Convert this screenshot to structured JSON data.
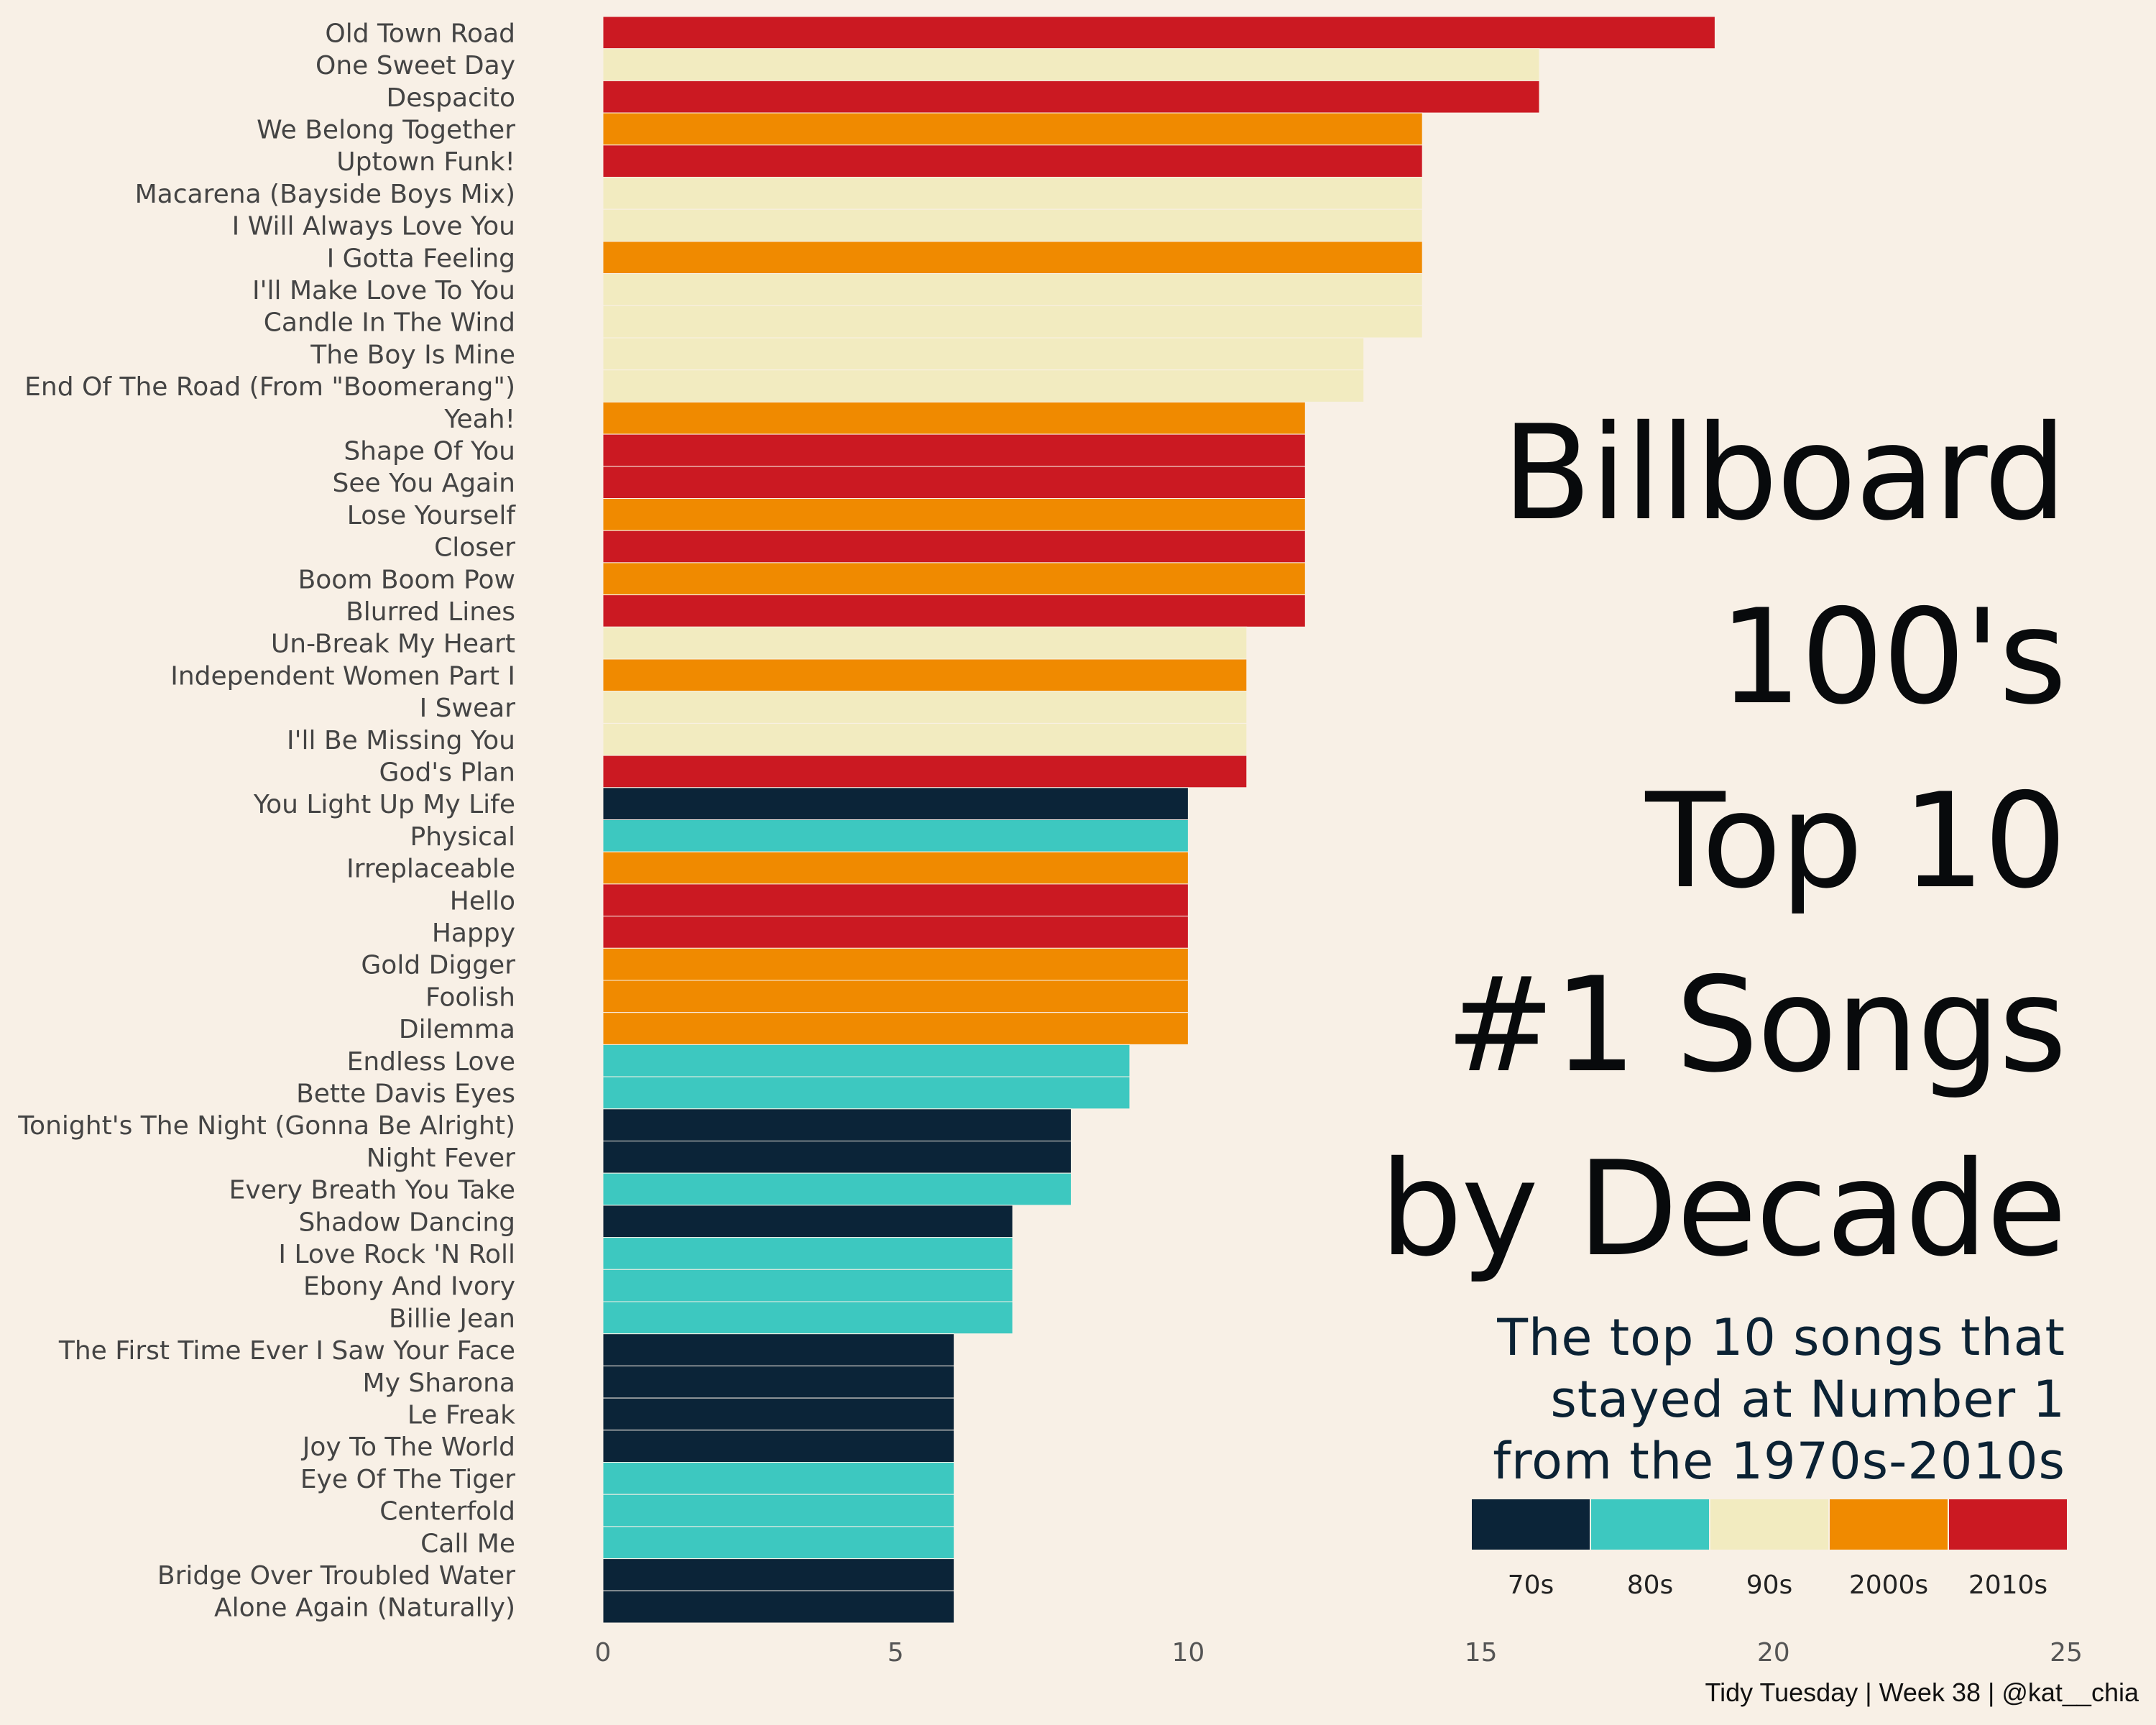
{
  "title_lines": [
    "Billboard",
    "100's",
    "Top 10",
    "#1 Songs",
    "by Decade"
  ],
  "subtitle_lines": [
    "The top 10 songs that",
    "stayed at Number 1",
    "from the 1970s-2010s"
  ],
  "caption": "Tidy Tuesday | Week 38 | @kat__chia",
  "chart_data": {
    "type": "bar",
    "orientation": "horizontal",
    "xlim": [
      0,
      25
    ],
    "x_ticks": [
      0,
      5,
      10,
      15,
      20,
      25
    ],
    "grid": false,
    "legend_position": "right",
    "legend": [
      {
        "label": "70s",
        "color": "#0b2438"
      },
      {
        "label": "80s",
        "color": "#3dc8c0"
      },
      {
        "label": "90s",
        "color": "#f2ebc0"
      },
      {
        "label": "2000s",
        "color": "#f08a00"
      },
      {
        "label": "2010s",
        "color": "#cb1922"
      }
    ],
    "bars": [
      {
        "song": "Old Town Road",
        "weeks": 19,
        "decade": "2010s"
      },
      {
        "song": "One Sweet Day",
        "weeks": 16,
        "decade": "90s"
      },
      {
        "song": "Despacito",
        "weeks": 16,
        "decade": "2010s"
      },
      {
        "song": "We Belong Together",
        "weeks": 14,
        "decade": "2000s"
      },
      {
        "song": "Uptown Funk!",
        "weeks": 14,
        "decade": "2010s"
      },
      {
        "song": "Macarena (Bayside Boys Mix)",
        "weeks": 14,
        "decade": "90s"
      },
      {
        "song": "I Will Always Love You",
        "weeks": 14,
        "decade": "90s"
      },
      {
        "song": "I Gotta Feeling",
        "weeks": 14,
        "decade": "2000s"
      },
      {
        "song": "I'll Make Love To You",
        "weeks": 14,
        "decade": "90s"
      },
      {
        "song": "Candle In The Wind",
        "weeks": 14,
        "decade": "90s"
      },
      {
        "song": "The Boy Is Mine",
        "weeks": 13,
        "decade": "90s"
      },
      {
        "song": "End Of The Road (From \"Boomerang\")",
        "weeks": 13,
        "decade": "90s"
      },
      {
        "song": "Yeah!",
        "weeks": 12,
        "decade": "2000s"
      },
      {
        "song": "Shape Of You",
        "weeks": 12,
        "decade": "2010s"
      },
      {
        "song": "See You Again",
        "weeks": 12,
        "decade": "2010s"
      },
      {
        "song": "Lose Yourself",
        "weeks": 12,
        "decade": "2000s"
      },
      {
        "song": "Closer",
        "weeks": 12,
        "decade": "2010s"
      },
      {
        "song": "Boom Boom Pow",
        "weeks": 12,
        "decade": "2000s"
      },
      {
        "song": "Blurred Lines",
        "weeks": 12,
        "decade": "2010s"
      },
      {
        "song": "Un-Break My Heart",
        "weeks": 11,
        "decade": "90s"
      },
      {
        "song": "Independent Women Part I",
        "weeks": 11,
        "decade": "2000s"
      },
      {
        "song": "I Swear",
        "weeks": 11,
        "decade": "90s"
      },
      {
        "song": "I'll Be Missing You",
        "weeks": 11,
        "decade": "90s"
      },
      {
        "song": "God's Plan",
        "weeks": 11,
        "decade": "2010s"
      },
      {
        "song": "You Light Up My Life",
        "weeks": 10,
        "decade": "70s"
      },
      {
        "song": "Physical",
        "weeks": 10,
        "decade": "80s"
      },
      {
        "song": "Irreplaceable",
        "weeks": 10,
        "decade": "2000s"
      },
      {
        "song": "Hello",
        "weeks": 10,
        "decade": "2010s"
      },
      {
        "song": "Happy",
        "weeks": 10,
        "decade": "2010s"
      },
      {
        "song": "Gold Digger",
        "weeks": 10,
        "decade": "2000s"
      },
      {
        "song": "Foolish",
        "weeks": 10,
        "decade": "2000s"
      },
      {
        "song": "Dilemma",
        "weeks": 10,
        "decade": "2000s"
      },
      {
        "song": "Endless Love",
        "weeks": 9,
        "decade": "80s"
      },
      {
        "song": "Bette Davis Eyes",
        "weeks": 9,
        "decade": "80s"
      },
      {
        "song": "Tonight's The Night (Gonna Be Alright)",
        "weeks": 8,
        "decade": "70s"
      },
      {
        "song": "Night Fever",
        "weeks": 8,
        "decade": "70s"
      },
      {
        "song": "Every Breath You Take",
        "weeks": 8,
        "decade": "80s"
      },
      {
        "song": "Shadow Dancing",
        "weeks": 7,
        "decade": "70s"
      },
      {
        "song": "I Love Rock 'N Roll",
        "weeks": 7,
        "decade": "80s"
      },
      {
        "song": "Ebony And Ivory",
        "weeks": 7,
        "decade": "80s"
      },
      {
        "song": "Billie Jean",
        "weeks": 7,
        "decade": "80s"
      },
      {
        "song": "The First Time Ever I Saw Your Face",
        "weeks": 6,
        "decade": "70s"
      },
      {
        "song": "My Sharona",
        "weeks": 6,
        "decade": "70s"
      },
      {
        "song": "Le Freak",
        "weeks": 6,
        "decade": "70s"
      },
      {
        "song": "Joy To The World",
        "weeks": 6,
        "decade": "70s"
      },
      {
        "song": "Eye Of The Tiger",
        "weeks": 6,
        "decade": "80s"
      },
      {
        "song": "Centerfold",
        "weeks": 6,
        "decade": "80s"
      },
      {
        "song": "Call Me",
        "weeks": 6,
        "decade": "80s"
      },
      {
        "song": "Bridge Over Troubled Water",
        "weeks": 6,
        "decade": "70s"
      },
      {
        "song": "Alone Again (Naturally)",
        "weeks": 6,
        "decade": "70s"
      }
    ]
  }
}
